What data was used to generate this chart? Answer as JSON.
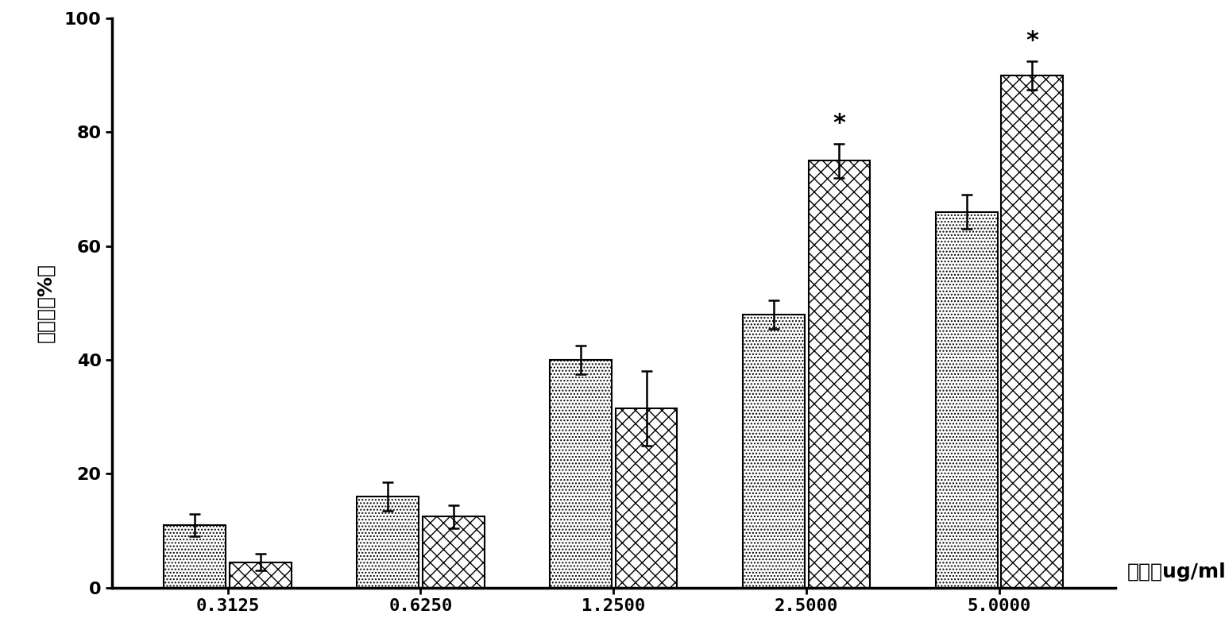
{
  "categories": [
    "0.3125",
    "0.6250",
    "1.2500",
    "2.5000",
    "5.0000"
  ],
  "series1_values": [
    11,
    16,
    40,
    48,
    66
  ],
  "series2_values": [
    4.5,
    12.5,
    31.5,
    75,
    90
  ],
  "series1_errors": [
    2.0,
    2.5,
    2.5,
    2.5,
    3.0
  ],
  "series2_errors": [
    1.5,
    2.0,
    6.5,
    3.0,
    2.5
  ],
  "bar_width": 0.32,
  "ylabel": "抑制率（%）",
  "xlabel": "浓度（ug/ml）",
  "ylim": [
    0,
    100
  ],
  "yticks": [
    0,
    20,
    40,
    60,
    80,
    100
  ],
  "significance_indices": [
    3,
    4
  ],
  "background_color": "#ffffff",
  "bar1_facecolor": "#ffffff",
  "bar2_facecolor": "#ffffff",
  "bar1_edgecolor": "#000000",
  "bar2_edgecolor": "#000000",
  "axis_fontsize": 18,
  "tick_fontsize": 16,
  "star_fontsize": 22
}
